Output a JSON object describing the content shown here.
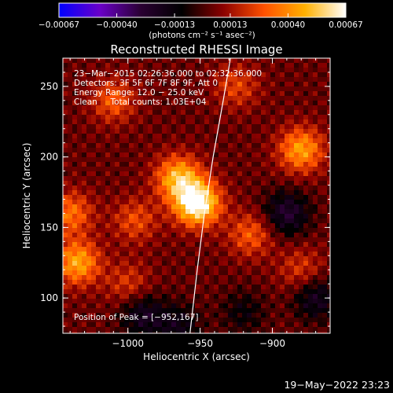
{
  "chart_data": {
    "type": "heatmap",
    "title": "Reconstructed RHESSI Image",
    "xlabel": "Heliocentric X (arcsec)",
    "ylabel": "Heliocentric Y (arcsec)",
    "xlim": [
      -1045,
      -860
    ],
    "ylim": [
      75,
      270
    ],
    "x_ticks": [
      {
        "value": -1000,
        "label": "−1000"
      },
      {
        "value": -950,
        "label": "−950"
      },
      {
        "value": -900,
        "label": "−900"
      }
    ],
    "y_ticks": [
      {
        "value": 100,
        "label": "100"
      },
      {
        "value": 150,
        "label": "150"
      },
      {
        "value": 200,
        "label": "200"
      },
      {
        "value": 250,
        "label": "250"
      }
    ],
    "colorbar": {
      "range": [
        -0.00067,
        0.00067
      ],
      "ticks": [
        {
          "value": -0.00067,
          "label": "−0.00067"
        },
        {
          "value": -0.0004,
          "label": "−0.00040"
        },
        {
          "value": -0.00013,
          "label": "−0.00013"
        },
        {
          "value": 0.00013,
          "label": "0.00013"
        },
        {
          "value": 0.0004,
          "label": "0.00040"
        },
        {
          "value": 0.00067,
          "label": "0.00067"
        }
      ],
      "unit_label": "(photons cm⁻² s⁻¹ asec⁻²)",
      "colors": [
        "#0000ff",
        "#6a00c8",
        "#2a0032",
        "#000000",
        "#8a0000",
        "#ff5000",
        "#ffb000",
        "#ffffff"
      ]
    },
    "annotations": [
      "23−Mar−2015 02:26:36.000 to 02:32:36.000",
      "Detectors: 3F 5F 6F 7F 8F 9F, Att 0",
      "Energy Range: 12.0 − 25.0 keV",
      "Clean     Total counts: 1.03E+04"
    ],
    "peak_text": "Position of Peak = [−952,167]",
    "peak": {
      "x": -952,
      "y": 167
    },
    "sources": [
      {
        "x": -952,
        "y": 167,
        "value": 0.00067
      },
      {
        "x": -965,
        "y": 185,
        "value": 0.00045
      },
      {
        "x": -880,
        "y": 205,
        "value": 0.0004
      },
      {
        "x": -1035,
        "y": 125,
        "value": 0.00042
      },
      {
        "x": -1040,
        "y": 160,
        "value": 0.0003
      },
      {
        "x": -1010,
        "y": 240,
        "value": 0.00025
      },
      {
        "x": -995,
        "y": 155,
        "value": 0.00022
      },
      {
        "x": -915,
        "y": 145,
        "value": 0.00025
      },
      {
        "x": -925,
        "y": 250,
        "value": 0.0002
      },
      {
        "x": -1000,
        "y": 110,
        "value": 0.00018
      },
      {
        "x": -880,
        "y": 120,
        "value": 0.00018
      },
      {
        "x": -890,
        "y": 160,
        "value": -0.0003
      },
      {
        "x": -870,
        "y": 100,
        "value": -0.00025
      },
      {
        "x": -990,
        "y": 88,
        "value": -0.00025
      },
      {
        "x": -965,
        "y": 80,
        "value": -0.0002
      },
      {
        "x": -920,
        "y": 90,
        "value": -0.00015
      }
    ],
    "limb_curve": [
      [
        -957,
        75
      ],
      [
        -952,
        120
      ],
      [
        -947,
        160
      ],
      [
        -941,
        200
      ],
      [
        -934,
        240
      ],
      [
        -929,
        270
      ]
    ],
    "grid": false
  },
  "timestamp": "19−May−2022 23:23"
}
